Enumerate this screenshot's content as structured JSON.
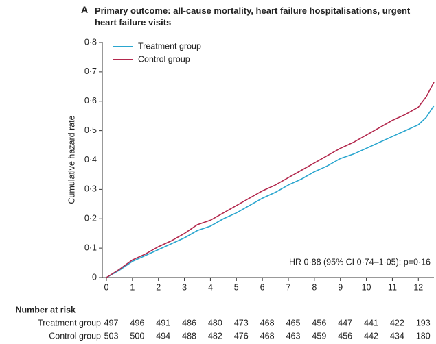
{
  "chart_data": {
    "type": "line",
    "panel": "A",
    "title": "Primary outcome: all-cause mortality, heart failure hospitalisations, urgent heart failure visits",
    "y_label": "Cumulative hazard rate",
    "annotation": "HR 0·88 (95% CI 0·74–1·05); p=0·16",
    "x": [
      0,
      0.5,
      1,
      1.5,
      2,
      2.5,
      3,
      3.5,
      4,
      4.5,
      5,
      5.5,
      6,
      6.5,
      7,
      7.5,
      8,
      8.5,
      9,
      9.5,
      10,
      10.5,
      11,
      11.5,
      12,
      12.3,
      12.6
    ],
    "series": [
      {
        "name": "Treatment group",
        "color": "#2aa6cf",
        "values": [
          0,
          0.025,
          0.055,
          0.075,
          0.095,
          0.115,
          0.135,
          0.16,
          0.175,
          0.2,
          0.22,
          0.245,
          0.27,
          0.29,
          0.315,
          0.335,
          0.36,
          0.38,
          0.405,
          0.42,
          0.44,
          0.46,
          0.48,
          0.5,
          0.52,
          0.545,
          0.585
        ]
      },
      {
        "name": "Control group",
        "color": "#b3284d",
        "values": [
          0,
          0.028,
          0.06,
          0.08,
          0.105,
          0.125,
          0.15,
          0.18,
          0.195,
          0.22,
          0.245,
          0.27,
          0.295,
          0.315,
          0.34,
          0.365,
          0.39,
          0.415,
          0.44,
          0.46,
          0.485,
          0.51,
          0.535,
          0.555,
          0.58,
          0.615,
          0.665
        ]
      }
    ],
    "xlim": [
      0,
      12.6
    ],
    "xticks": [
      0,
      1,
      2,
      3,
      4,
      5,
      6,
      7,
      8,
      9,
      10,
      11,
      12
    ],
    "ylim": [
      0,
      0.8
    ],
    "yticks": [
      0,
      {
        "value": 0.1,
        "label": "0·1"
      },
      {
        "value": 0.2,
        "label": "0·2"
      },
      {
        "value": 0.3,
        "label": "0·3"
      },
      {
        "value": 0.4,
        "label": "0·4"
      },
      {
        "value": 0.5,
        "label": "0·5"
      },
      {
        "value": 0.6,
        "label": "0·6"
      },
      {
        "value": 0.7,
        "label": "0·7"
      },
      {
        "value": 0.8,
        "label": "0·8"
      }
    ],
    "legend": "top-left",
    "risk_table": {
      "title": "Number at risk",
      "rows": [
        {
          "name": "Treatment group",
          "values": [
            497,
            496,
            491,
            486,
            480,
            473,
            468,
            465,
            456,
            447,
            441,
            422,
            193
          ]
        },
        {
          "name": "Control group",
          "values": [
            503,
            500,
            494,
            488,
            482,
            476,
            468,
            463,
            459,
            456,
            442,
            434,
            180
          ]
        }
      ]
    }
  }
}
